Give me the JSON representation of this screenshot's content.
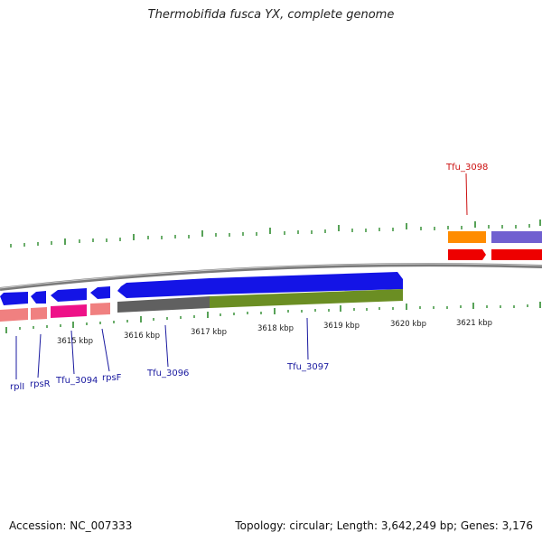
{
  "title": "Thermobifida fusca YX, complete genome",
  "footer": {
    "accession": "Accession: NC_007333",
    "topology": "Topology: circular; Length: 3,642,249 bp; Genes: 3,176"
  },
  "colors": {
    "backbone": "#808080",
    "tick": "#2e8b2e",
    "label_blue": "#1a1aa0",
    "label_red": "#cc1111",
    "cds_blue": "#1010e0",
    "rna_salmon": "#f08080",
    "pink": "#ee1188",
    "dark_gray": "#606060",
    "olive": "#6b8e23",
    "orange": "#ff8c00",
    "slate": "#7060d0",
    "red": "#ee0000"
  },
  "scale_labels": [
    "3615 kbp",
    "3616 kbp",
    "3617 kbp",
    "3618 kbp",
    "3619 kbp",
    "3620 kbp",
    "3621 kbp"
  ],
  "genes": [
    {
      "name": "rplI",
      "color": "label_blue"
    },
    {
      "name": "rpsR",
      "color": "label_blue"
    },
    {
      "name": "Tfu_3094",
      "color": "label_blue"
    },
    {
      "name": "rpsF",
      "color": "label_blue"
    },
    {
      "name": "Tfu_3096",
      "color": "label_blue"
    },
    {
      "name": "Tfu_3097",
      "color": "label_blue"
    },
    {
      "name": "Tfu_3098",
      "color": "label_red"
    }
  ]
}
